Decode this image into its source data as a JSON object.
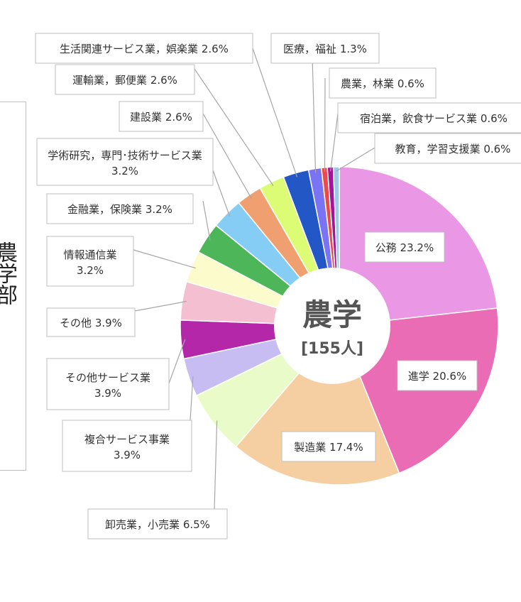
{
  "side_label": "農学部",
  "chart_data": {
    "type": "pie",
    "center_title": "農学",
    "center_subtitle": "[155人]",
    "slices": [
      {
        "label": "公務 23.2%",
        "value": 23.2,
        "color": "#ea97e6"
      },
      {
        "label": "進学 20.6%",
        "value": 20.6,
        "color": "#ea6cb4"
      },
      {
        "label": "製造業 17.4%",
        "value": 17.4,
        "color": "#f5cfa2"
      },
      {
        "label": "卸売業，小売業 6.5%",
        "value": 6.5,
        "color": "#e8fbc8"
      },
      {
        "label": "複合サービス事業 3.9%",
        "value": 3.9,
        "color": "#c7bdf2"
      },
      {
        "label": "その他サービス業 3.9%",
        "value": 3.9,
        "color": "#b327a8"
      },
      {
        "label": "その他 3.9%",
        "value": 3.9,
        "color": "#f3bfd1"
      },
      {
        "label": "情報通信業 3.2%",
        "value": 3.2,
        "color": "#fbfbcc"
      },
      {
        "label": "金融業，保険業 3.2%",
        "value": 3.2,
        "color": "#4cb659"
      },
      {
        "label": "学術研究，専門･技術サービス業 3.2%",
        "value": 3.2,
        "color": "#86cdf5"
      },
      {
        "label": "建設業 2.6%",
        "value": 2.6,
        "color": "#f0a070"
      },
      {
        "label": "運輸業，郵便業 2.6%",
        "value": 2.6,
        "color": "#dcfc76"
      },
      {
        "label": "生活関連サービス業，娯楽業 2.6%",
        "value": 2.6,
        "color": "#2357c6"
      },
      {
        "label": "医療，福祉 1.3%",
        "value": 1.3,
        "color": "#7a73f3"
      },
      {
        "label": "農業，林業 0.6%",
        "value": 0.6,
        "color": "#ea4a4a"
      },
      {
        "label": "宿泊業，飲食サービス業 0.6%",
        "value": 0.6,
        "color": "#a3149a"
      },
      {
        "label": "教育，学習支援業 0.6%",
        "value": 0.6,
        "color": "#9ec7e8"
      }
    ]
  }
}
